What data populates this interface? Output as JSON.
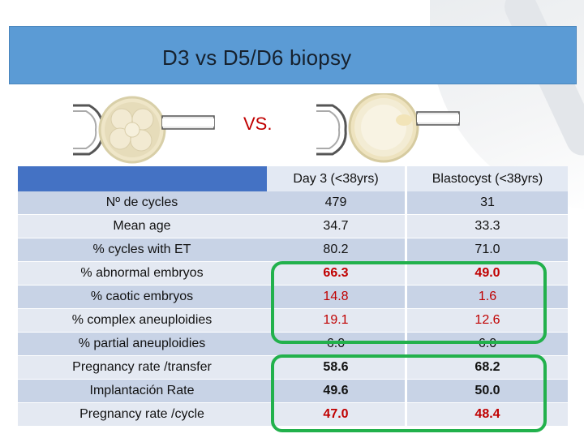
{
  "slide": {
    "title": "D3 vs D5/D6 biopsy",
    "vs_label": "VS."
  },
  "table": {
    "headers": [
      "",
      "Day 3 (<38yrs)",
      "Blastocyst (<38yrs)"
    ],
    "rows": [
      {
        "label": "Nº de cycles",
        "day3": "479",
        "blast": "31",
        "style": "plain"
      },
      {
        "label": "Mean age",
        "day3": "34.7",
        "blast": "33.3",
        "style": "plain"
      },
      {
        "label": "% cycles with ET",
        "day3": "80.2",
        "blast": "71.0",
        "style": "plain"
      },
      {
        "label": "% abnormal embryos",
        "day3": "66.3",
        "blast": "49.0",
        "style": "red"
      },
      {
        "label": "% caotic embryos",
        "day3": "14.8",
        "blast": "1.6",
        "style": "red"
      },
      {
        "label": "% complex aneuploidies",
        "day3": "19.1",
        "blast": "12.6",
        "style": "red"
      },
      {
        "label": "% partial aneuploidies",
        "day3": "6.0",
        "blast": "6.0",
        "style": "plain"
      },
      {
        "label": "Pregnancy rate /transfer",
        "day3": "58.6",
        "blast": "68.2",
        "style": "bold"
      },
      {
        "label": "Implantación Rate",
        "day3": "49.6",
        "blast": "50.0",
        "style": "bold"
      },
      {
        "label": "Pregnancy rate /cycle",
        "day3": "47.0",
        "blast": "48.4",
        "style": "redbold"
      }
    ]
  },
  "colors": {
    "title_bar": "#5b9bd5",
    "header": "#4472c4",
    "highlight_red": "#c00000",
    "highlight_box": "#22b14c"
  },
  "icons": {
    "left_illustration": "day3-embryo-biopsy-icon",
    "right_illustration": "blastocyst-biopsy-icon"
  }
}
